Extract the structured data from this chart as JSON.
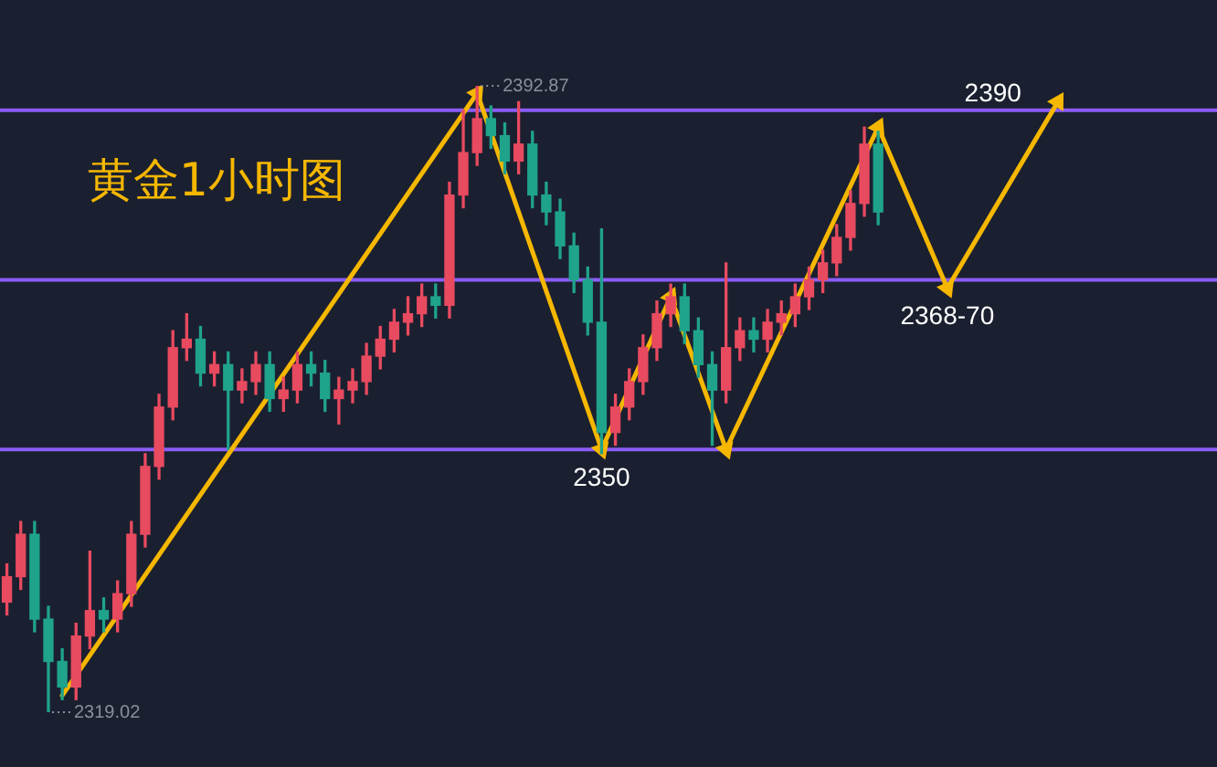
{
  "chart_data": {
    "type": "candlestick",
    "title": "黄金1小时图",
    "categories": [
      null,
      null,
      null,
      null,
      null,
      null,
      null,
      null,
      null,
      null,
      null,
      null,
      null,
      null,
      null,
      null,
      null,
      null,
      null,
      null,
      null,
      null,
      null,
      null,
      null,
      null,
      null,
      null,
      null,
      null,
      null,
      null,
      null,
      null,
      null,
      null,
      null,
      null,
      null,
      null,
      null,
      null,
      null,
      null,
      null,
      null,
      null,
      null,
      null,
      null,
      null,
      null,
      null,
      null,
      null,
      null,
      null,
      null,
      null,
      null,
      null,
      null,
      null,
      null,
      null,
      null,
      null,
      null,
      null,
      null,
      null,
      null,
      null,
      null,
      null,
      null,
      null,
      null,
      null,
      null,
      null,
      null,
      null,
      null,
      null,
      null,
      null,
      null
    ],
    "ohlc": [
      [
        2332,
        2336.5,
        2330.5,
        2335
      ],
      [
        2335,
        2341.5,
        2333.5,
        2340
      ],
      [
        2340,
        2341.5,
        2328.5,
        2330
      ],
      [
        2330,
        2331.5,
        2319.02,
        2325
      ],
      [
        2325,
        2326.5,
        2320.5,
        2322
      ],
      [
        2322,
        2329.5,
        2320.5,
        2328
      ],
      [
        2328,
        2338,
        2326.5,
        2331
      ],
      [
        2331,
        2332.5,
        2328.5,
        2330
      ],
      [
        2330,
        2334.5,
        2328.5,
        2333
      ],
      [
        2333,
        2341.5,
        2331.5,
        2340
      ],
      [
        2340,
        2349.5,
        2338.5,
        2348
      ],
      [
        2348,
        2356.5,
        2346.5,
        2355
      ],
      [
        2355,
        2364,
        2353.5,
        2362
      ],
      [
        2362,
        2366,
        2360.5,
        2363
      ],
      [
        2363,
        2364.5,
        2357.5,
        2359
      ],
      [
        2359,
        2361.5,
        2357.5,
        2360
      ],
      [
        2360,
        2361.5,
        2350,
        2357
      ],
      [
        2357,
        2359.5,
        2355.5,
        2358
      ],
      [
        2358,
        2361.5,
        2356.5,
        2360
      ],
      [
        2360,
        2361.5,
        2354.5,
        2356
      ],
      [
        2356,
        2358.5,
        2354.5,
        2357
      ],
      [
        2357,
        2361.5,
        2355.5,
        2360
      ],
      [
        2360,
        2361.5,
        2357.5,
        2359
      ],
      [
        2359,
        2360.5,
        2354.5,
        2356
      ],
      [
        2356,
        2358.5,
        2353,
        2357
      ],
      [
        2357,
        2359.5,
        2355.5,
        2358
      ],
      [
        2358,
        2362.5,
        2356.5,
        2361
      ],
      [
        2361,
        2364.5,
        2359.5,
        2363
      ],
      [
        2363,
        2366.5,
        2361.5,
        2365
      ],
      [
        2365,
        2368,
        2363.5,
        2366
      ],
      [
        2366,
        2369.5,
        2364.5,
        2368
      ],
      [
        2368,
        2369.5,
        2365.5,
        2367
      ],
      [
        2367,
        2381.5,
        2365.5,
        2380
      ],
      [
        2380,
        2390,
        2378.5,
        2385
      ],
      [
        2385,
        2392.87,
        2383.5,
        2389
      ],
      [
        2389,
        2390.5,
        2385.5,
        2387
      ],
      [
        2387,
        2388.5,
        2382.5,
        2384
      ],
      [
        2384,
        2391,
        2382.5,
        2386
      ],
      [
        2386,
        2387.5,
        2378.5,
        2380
      ],
      [
        2380,
        2381.5,
        2376.5,
        2378
      ],
      [
        2378,
        2379.5,
        2372.5,
        2374
      ],
      [
        2374,
        2375.5,
        2368.5,
        2370
      ],
      [
        2370,
        2371.5,
        2363.5,
        2365
      ],
      [
        2365,
        2376,
        2349.5,
        2352
      ],
      [
        2352,
        2356.5,
        2350.5,
        2355
      ],
      [
        2355,
        2359.5,
        2353.5,
        2358
      ],
      [
        2358,
        2363.5,
        2356.5,
        2362
      ],
      [
        2362,
        2367.5,
        2360.5,
        2366
      ],
      [
        2366,
        2369.5,
        2364.5,
        2368
      ],
      [
        2368,
        2369.5,
        2362.5,
        2364
      ],
      [
        2364,
        2365.5,
        2358.5,
        2360
      ],
      [
        2360,
        2361.5,
        2350.5,
        2357
      ],
      [
        2357,
        2372,
        2355.5,
        2362
      ],
      [
        2362,
        2365.5,
        2360.5,
        2364
      ],
      [
        2364,
        2365.5,
        2361.5,
        2363
      ],
      [
        2363,
        2366.5,
        2361.5,
        2365
      ],
      [
        2365,
        2367.5,
        2363.5,
        2366
      ],
      [
        2366,
        2369.5,
        2364.5,
        2368
      ],
      [
        2368,
        2371.5,
        2366.5,
        2370
      ],
      [
        2370,
        2373.5,
        2368.5,
        2372
      ],
      [
        2372,
        2376.5,
        2370.5,
        2375
      ],
      [
        2375,
        2380.5,
        2373.5,
        2379
      ],
      [
        2379,
        2388,
        2377.5,
        2386
      ],
      [
        2386,
        2387.5,
        2376.5,
        2378
      ],
      null,
      null,
      null,
      null,
      null,
      null,
      null,
      null,
      null,
      null,
      null,
      null,
      null,
      null,
      null,
      null,
      null,
      null,
      null,
      null,
      null,
      null,
      null,
      null
    ],
    "colors": [
      "#e84a5f",
      "#e84a5f",
      "#1fa38a",
      "#1fa38a",
      "#1fa38a",
      "#e84a5f",
      "#e84a5f",
      "#1fa38a",
      "#e84a5f",
      "#e84a5f",
      "#e84a5f",
      "#e84a5f",
      "#e84a5f",
      "#e84a5f",
      "#1fa38a",
      "#e84a5f",
      "#1fa38a",
      "#e84a5f",
      "#e84a5f",
      "#1fa38a",
      "#e84a5f",
      "#e84a5f",
      "#1fa38a",
      "#1fa38a",
      "#e84a5f",
      "#e84a5f",
      "#e84a5f",
      "#e84a5f",
      "#e84a5f",
      "#e84a5f",
      "#e84a5f",
      "#1fa38a",
      "#e84a5f",
      "#e84a5f",
      "#e84a5f",
      "#1fa38a",
      "#1fa38a",
      "#e84a5f",
      "#1fa38a",
      "#1fa38a",
      "#1fa38a",
      "#1fa38a",
      "#1fa38a",
      "#1fa38a",
      "#e84a5f",
      "#e84a5f",
      "#e84a5f",
      "#e84a5f",
      "#e84a5f",
      "#1fa38a",
      "#1fa38a",
      "#1fa38a",
      "#e84a5f",
      "#e84a5f",
      "#1fa38a",
      "#e84a5f",
      "#e84a5f",
      "#e84a5f",
      "#e84a5f",
      "#e84a5f",
      "#e84a5f",
      "#e84a5f",
      "#e84a5f",
      "#1fa38a",
      null,
      null,
      null,
      null,
      null,
      null,
      null,
      null,
      null,
      null,
      null,
      null,
      null,
      null,
      null,
      null,
      null,
      null,
      null,
      null,
      null,
      null,
      null,
      null
    ],
    "series": [
      {
        "type": "line",
        "color": "#f5b700",
        "marker": "triangle",
        "values": [
          null,
          null,
          null,
          null,
          2321,
          null,
          null,
          null,
          null,
          null,
          null,
          null,
          null,
          null,
          null,
          null,
          null,
          null,
          null,
          null,
          null,
          null,
          null,
          null,
          null,
          null,
          null,
          null,
          null,
          null,
          null,
          null,
          null,
          null,
          2392,
          null,
          null,
          null,
          null,
          null,
          null,
          null,
          null,
          2350,
          null,
          null,
          null,
          null,
          2368,
          null,
          null,
          null,
          2350,
          null,
          null,
          null,
          null,
          null,
          null,
          null,
          null,
          null,
          null,
          2388,
          null,
          null,
          null,
          null,
          2369,
          null,
          null,
          null,
          null,
          null,
          null,
          null,
          2391,
          null,
          null,
          null,
          null,
          null,
          null,
          null,
          null,
          null,
          null,
          null
        ]
      }
    ],
    "ref_lines": [
      {
        "axis": "y",
        "value": 2390,
        "color": "#8b5cf6"
      },
      {
        "axis": "y",
        "value": 2370,
        "color": "#8b5cf6"
      },
      {
        "axis": "y",
        "value": 2350,
        "color": "#8b5cf6"
      }
    ],
    "annotations": [
      "2392.87",
      "2319.02",
      {
        "text": "2350",
        "y": 2350
      },
      {
        "text": "2368-70",
        "y": 2369
      },
      {
        "text": "2390",
        "y": 2390
      }
    ]
  }
}
